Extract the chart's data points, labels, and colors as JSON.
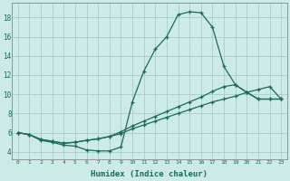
{
  "xlabel": "Humidex (Indice chaleur)",
  "background_color": "#cceae6",
  "grid_color": "#aacccc",
  "line_color": "#1a6b5a",
  "xlim": [
    -0.5,
    23.5
  ],
  "ylim": [
    3.2,
    19.5
  ],
  "xticks": [
    0,
    1,
    2,
    3,
    4,
    5,
    6,
    7,
    8,
    9,
    10,
    11,
    12,
    13,
    14,
    15,
    16,
    17,
    18,
    19,
    20,
    21,
    22,
    23
  ],
  "yticks": [
    4,
    6,
    8,
    10,
    12,
    14,
    16,
    18
  ],
  "curve1_x": [
    0,
    1,
    2,
    3,
    4,
    5,
    6,
    7,
    8,
    9,
    10,
    11,
    12,
    13,
    14,
    15,
    16,
    17,
    18,
    19,
    20,
    21,
    22,
    23
  ],
  "curve1_y": [
    6.0,
    5.8,
    5.2,
    5.0,
    4.7,
    4.6,
    4.2,
    4.1,
    4.1,
    4.5,
    9.2,
    12.4,
    14.7,
    16.0,
    18.3,
    18.6,
    18.5,
    17.0,
    12.9,
    11.0,
    10.2,
    9.5,
    9.5,
    9.5
  ],
  "curve2_x": [
    0,
    1,
    2,
    3,
    4,
    5,
    6,
    7,
    8,
    9,
    10,
    11,
    12,
    13,
    14,
    15,
    16,
    17,
    18,
    19,
    20,
    21,
    22,
    23
  ],
  "curve2_y": [
    6.0,
    5.8,
    5.3,
    5.1,
    4.9,
    5.0,
    5.2,
    5.35,
    5.6,
    5.9,
    6.4,
    6.8,
    7.2,
    7.6,
    8.0,
    8.4,
    8.8,
    9.2,
    9.5,
    9.8,
    10.2,
    10.5,
    10.8,
    9.5
  ],
  "curve3_x": [
    0,
    1,
    2,
    3,
    4,
    5,
    6,
    7,
    8,
    9,
    10,
    11,
    12,
    13,
    14,
    15,
    16,
    17,
    18,
    19,
    20,
    21,
    22,
    23
  ],
  "curve3_y": [
    6.0,
    5.8,
    5.3,
    5.1,
    4.9,
    5.0,
    5.2,
    5.35,
    5.6,
    6.1,
    6.7,
    7.2,
    7.7,
    8.2,
    8.7,
    9.2,
    9.7,
    10.3,
    10.8,
    11.0,
    10.2,
    9.5,
    9.5,
    9.5
  ]
}
